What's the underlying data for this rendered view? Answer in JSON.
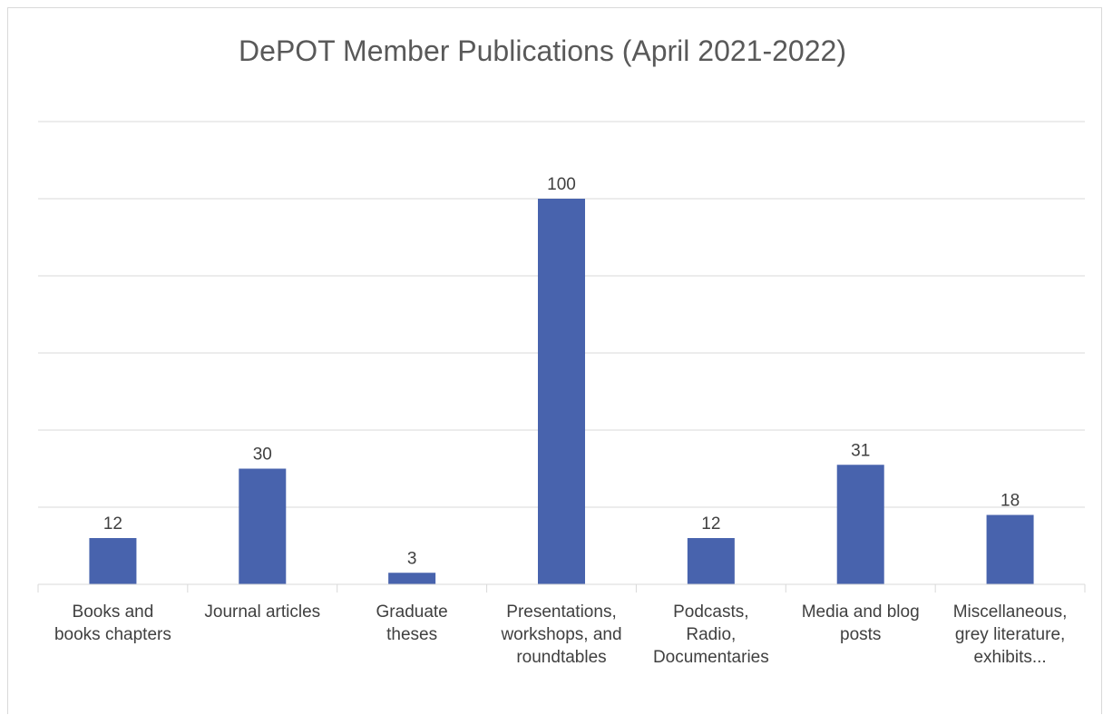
{
  "chart_data": {
    "type": "bar",
    "title": "DePOT Member Publications (April 2021-2022)",
    "xlabel": "",
    "ylabel": "",
    "categories": [
      [
        "Books and",
        "books chapters"
      ],
      [
        "Journal articles"
      ],
      [
        "Graduate",
        "theses"
      ],
      [
        "Presentations,",
        "workshops, and",
        "roundtables"
      ],
      [
        "Podcasts,",
        "Radio,",
        "Documentaries"
      ],
      [
        "Media and blog",
        "posts"
      ],
      [
        "Miscellaneous,",
        "grey literature,",
        "exhibits..."
      ]
    ],
    "values": [
      12,
      30,
      3,
      100,
      12,
      31,
      18
    ],
    "ylim": [
      0,
      120
    ],
    "gridlines": [
      20,
      40,
      60,
      80,
      100,
      120
    ],
    "grid": true,
    "legend": "none",
    "bar_color": "#4863ad",
    "grid_color": "#d9d9d9"
  }
}
